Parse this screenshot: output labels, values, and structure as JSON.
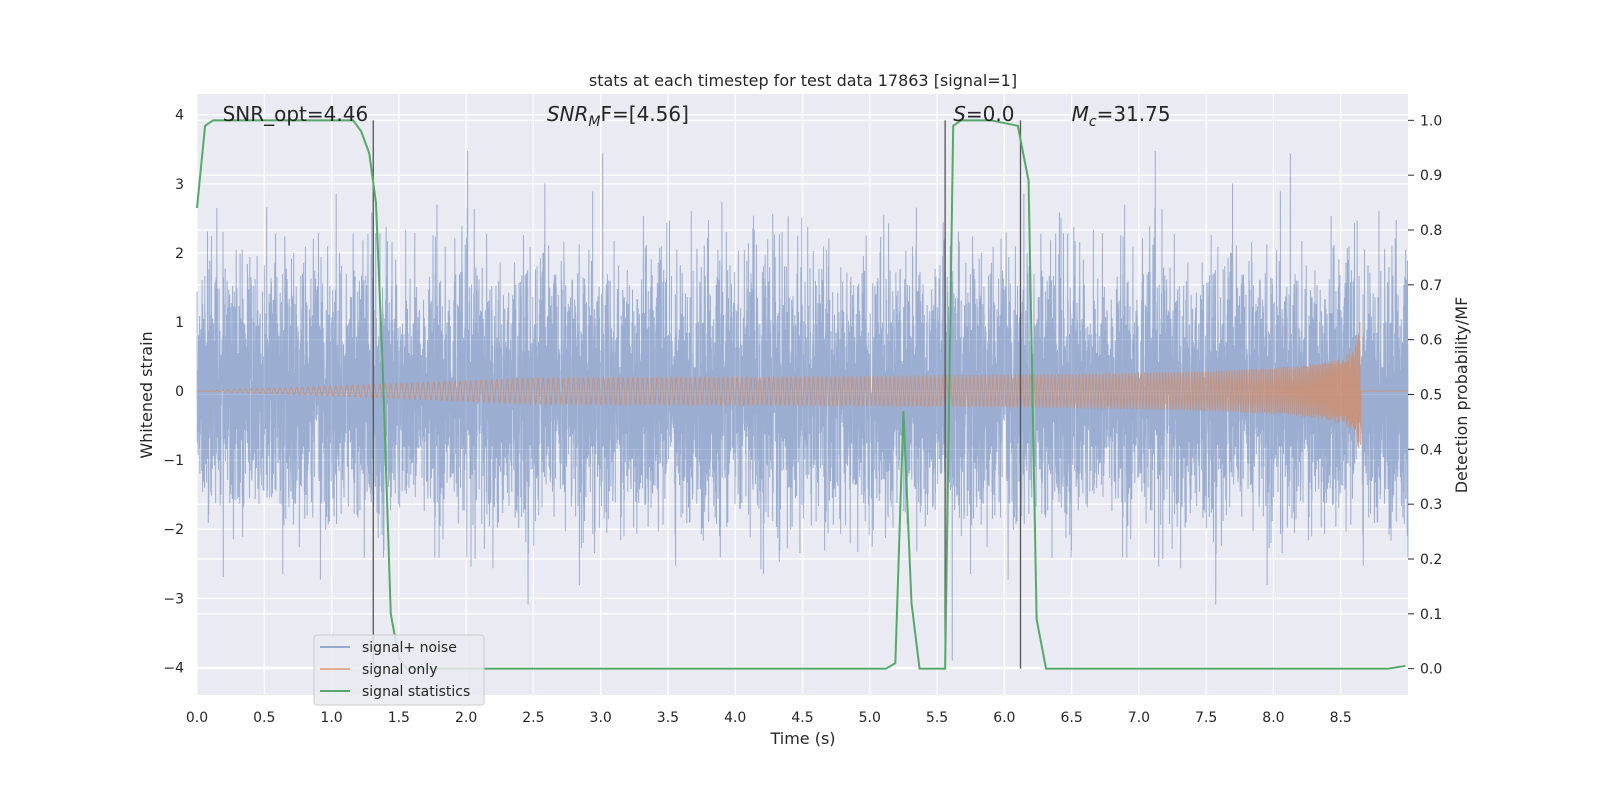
{
  "chart_data": {
    "type": "line",
    "title": "stats at each timestep for test data 17863 [signal=1]",
    "xlabel": "Time (s)",
    "ylabel_left": "Whitened strain",
    "ylabel_right": "Detection probability/MF",
    "xlim": [
      0.0,
      9.0
    ],
    "ylim_left": [
      -4.4,
      4.3
    ],
    "ylim_right": [
      -0.048,
      1.048
    ],
    "x_ticks": [
      0.0,
      0.5,
      1.0,
      1.5,
      2.0,
      2.5,
      3.0,
      3.5,
      4.0,
      4.5,
      5.0,
      5.5,
      6.0,
      6.5,
      7.0,
      7.5,
      8.0,
      8.5
    ],
    "x_tick_labels": [
      "0.0",
      "0.5",
      "1.0",
      "1.5",
      "2.0",
      "2.5",
      "3.0",
      "3.5",
      "4.0",
      "4.5",
      "5.0",
      "5.5",
      "6.0",
      "6.5",
      "7.0",
      "7.5",
      "8.0",
      "8.5"
    ],
    "y_left_ticks": [
      -4,
      -3,
      -2,
      -1,
      0,
      1,
      2,
      3,
      4
    ],
    "y_left_tick_labels": [
      "−4",
      "−3",
      "−2",
      "−1",
      "0",
      "1",
      "2",
      "3",
      "4"
    ],
    "y_right_ticks": [
      0.0,
      0.1,
      0.2,
      0.3,
      0.4,
      0.5,
      0.6,
      0.7,
      0.8,
      0.9,
      1.0
    ],
    "y_right_tick_labels": [
      "0.0",
      "0.1",
      "0.2",
      "0.3",
      "0.4",
      "0.5",
      "0.6",
      "0.7",
      "0.8",
      "0.9",
      "1.0"
    ],
    "grid": true,
    "legend_position": "lower-left",
    "series": [
      {
        "name": "signal+ noise",
        "axis": "left",
        "color": "#4c72b0",
        "kind": "noise",
        "sample_rate_hz": 1024,
        "typical_amplitude": 2.0,
        "peak_amplitude": 3.9
      },
      {
        "name": "signal only",
        "axis": "left",
        "color": "#dd8452",
        "kind": "chirp",
        "merger_time": 8.65,
        "peak_amplitude": 1.2
      },
      {
        "name": "signal statistics",
        "axis": "right",
        "color": "#55a868",
        "x": [
          0.0,
          0.06,
          0.12,
          0.3,
          0.6,
          0.9,
          1.16,
          1.22,
          1.28,
          1.33,
          1.38,
          1.44,
          1.5,
          1.56,
          2.0,
          3.0,
          4.0,
          5.0,
          5.12,
          5.19,
          5.25,
          5.31,
          5.37,
          5.56,
          5.62,
          5.68,
          5.75,
          5.9,
          6.1,
          6.18,
          6.24,
          6.31,
          6.4,
          7.0,
          8.0,
          8.85,
          8.98
        ],
        "y": [
          0.84,
          0.99,
          1.0,
          1.0,
          1.0,
          1.0,
          1.0,
          0.98,
          0.94,
          0.85,
          0.55,
          0.1,
          0.02,
          0.0,
          0.0,
          0.0,
          0.0,
          0.0,
          0.0,
          0.01,
          0.47,
          0.12,
          0.0,
          0.0,
          0.99,
          1.0,
          1.0,
          1.0,
          0.99,
          0.89,
          0.09,
          0.0,
          0.0,
          0.0,
          0.0,
          0.0,
          0.005
        ]
      }
    ],
    "vertical_lines": [
      {
        "x": 1.31,
        "color": "#555555"
      },
      {
        "x": 5.56,
        "color": "#555555"
      },
      {
        "x": 6.12,
        "color": "#555555"
      }
    ],
    "annotations": [
      {
        "text": "SNR_opt=4.46",
        "x": 0.19,
        "italic": false
      },
      {
        "main": "SNR",
        "sub": "M",
        "tail": "F=[4.56]",
        "x": 2.6,
        "italic": true
      },
      {
        "main": "S",
        "tail": "=0.0",
        "x": 5.62,
        "italic": true
      },
      {
        "main": "M",
        "sub": "c",
        "tail": "=31.75",
        "x": 6.5,
        "italic": true
      }
    ]
  }
}
